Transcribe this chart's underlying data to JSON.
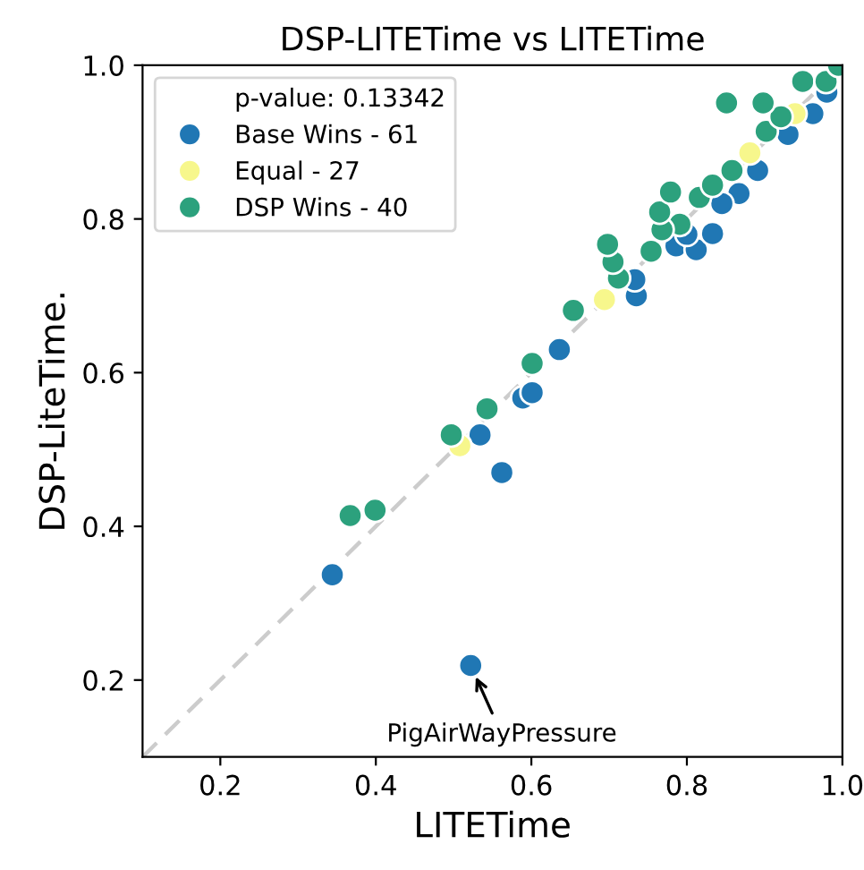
{
  "chart_data": {
    "type": "scatter",
    "title": "DSP-LITETime vs LITETime",
    "xlabel": "LITETime",
    "ylabel": "DSP-LiteTime.",
    "xlim": [
      0.1,
      1.0
    ],
    "ylim": [
      0.1,
      1.0
    ],
    "xticks": [
      0.2,
      0.4,
      0.6,
      0.8,
      {
        "value": 1.0,
        "label": "1.0"
      }
    ],
    "yticks": [
      0.2,
      0.4,
      0.6,
      0.8,
      {
        "value": 1.0,
        "label": "1.0"
      }
    ],
    "grid": false,
    "legend": "top left",
    "marker": "circle",
    "annotations": [
      "p-value: 0.13342",
      {
        "text": "PigAirWayPressure",
        "x": 0.522,
        "y": 0.219
      }
    ],
    "series": [
      {
        "type": "line",
        "color": "#cccccc",
        "line_style": "dashed",
        "marker": "none",
        "x": [
          0.1,
          1.0
        ],
        "values": [
          0.1,
          1.0
        ]
      },
      {
        "name": "Base Wins - 61",
        "color": "#2077b4",
        "x": [
          0.344,
          0.522,
          0.534,
          0.562,
          0.589,
          0.601,
          0.636,
          0.735,
          0.733,
          0.786,
          0.812,
          0.833,
          0.867,
          0.891,
          0.962,
          0.8,
          0.845,
          0.93,
          0.98
        ],
        "values": [
          0.337,
          0.219,
          0.519,
          0.47,
          0.567,
          0.574,
          0.63,
          0.7,
          0.721,
          0.765,
          0.76,
          0.781,
          0.833,
          0.863,
          0.937,
          0.78,
          0.82,
          0.91,
          0.965
        ]
      },
      {
        "name": "Equal - 27",
        "color": "#f7f78c",
        "x": [
          0.508,
          0.694,
          0.881,
          0.939
        ],
        "values": [
          0.505,
          0.695,
          0.886,
          0.937
        ]
      },
      {
        "name": "DSP Wins - 40",
        "color": "#2ca17d",
        "x": [
          0.367,
          0.399,
          0.497,
          0.543,
          0.601,
          0.654,
          0.712,
          0.705,
          0.698,
          0.754,
          0.791,
          0.768,
          0.765,
          0.779,
          0.816,
          0.833,
          0.858,
          0.902,
          0.921,
          0.851,
          0.898,
          0.949,
          0.979,
          0.995
        ],
        "values": [
          0.414,
          0.421,
          0.519,
          0.553,
          0.612,
          0.681,
          0.723,
          0.744,
          0.767,
          0.758,
          0.793,
          0.786,
          0.809,
          0.835,
          0.828,
          0.844,
          0.863,
          0.914,
          0.933,
          0.951,
          0.951,
          0.979,
          0.979,
          1.0
        ]
      }
    ]
  }
}
